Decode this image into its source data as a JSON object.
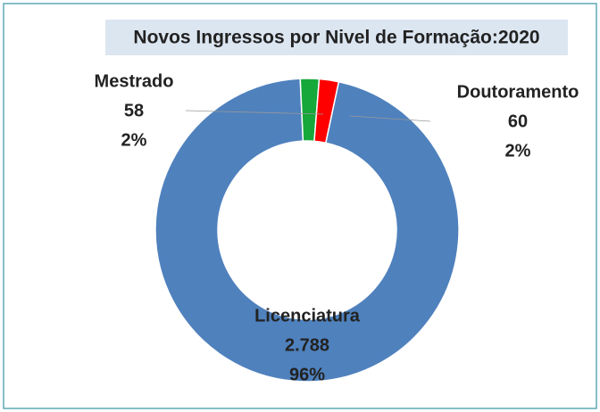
{
  "chart_data": {
    "type": "donut",
    "title": "Novos Ingressos por Nivel de Formação:2020",
    "categories": [
      "Licenciatura",
      "Mestrado",
      "Doutoramento"
    ],
    "values": [
      2788,
      58,
      60
    ],
    "value_labels": [
      "2.788",
      "58",
      "60"
    ],
    "percent_labels": [
      "96%",
      "2%",
      "2%"
    ],
    "colors": [
      "#4f81bd",
      "#16a83a",
      "#ff0000"
    ]
  }
}
